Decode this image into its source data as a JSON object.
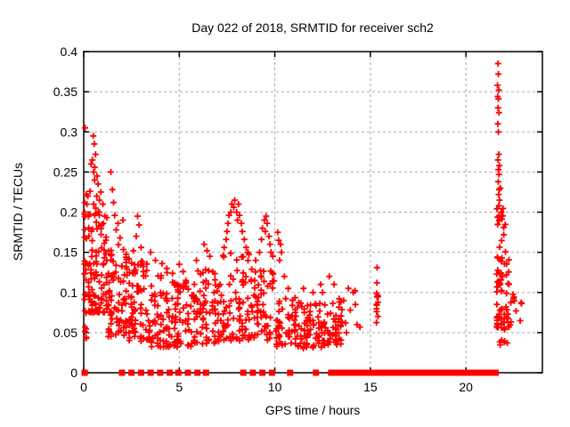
{
  "page": {
    "background": "#ffffff"
  },
  "chart_data": {
    "type": "scatter",
    "title": "Day 022 of 2018, SRMTID for receiver sch2",
    "xlabel": "GPS time / hours",
    "ylabel": "SRMTID / TECUs",
    "xlim": [
      0,
      24
    ],
    "ylim": [
      0,
      0.4
    ],
    "xticks": {
      "values": [
        0,
        5,
        10,
        15,
        20
      ],
      "labels": [
        "0",
        "5",
        "10",
        "15",
        "20"
      ]
    },
    "yticks": {
      "values": [
        0,
        0.05,
        0.1,
        0.15,
        0.2,
        0.25,
        0.3,
        0.35,
        0.4
      ],
      "labels": [
        "0",
        "0.05",
        "0.1",
        "0.15",
        "0.2",
        "0.25",
        "0.3",
        "0.35",
        "0.4"
      ]
    },
    "grid": {
      "on": true,
      "style": "dashed",
      "color": "#a8a8a8"
    },
    "legend": "none",
    "series": {
      "name": "SRMTID",
      "marker": "plus",
      "color": "#ff0000",
      "marker_size": 7
    },
    "border_color": "#000000",
    "zero_markers": {
      "shape": "square",
      "size": 7,
      "singles": [
        0.05,
        2.0,
        2.5,
        3.0,
        3.5,
        4.0,
        4.5,
        4.95,
        5.45,
        5.95,
        6.4,
        8.35,
        8.85,
        9.35,
        9.85,
        10.8,
        12.15,
        12.95
      ],
      "segments": [
        [
          13.2,
          14.3
        ],
        [
          14.5,
          21.55
        ]
      ]
    },
    "feature_points": [
      [
        0.07,
        0.305
      ],
      [
        0.5,
        0.295
      ],
      [
        0.55,
        0.285
      ],
      [
        0.62,
        0.272
      ],
      [
        0.45,
        0.265
      ],
      [
        0.38,
        0.26
      ],
      [
        0.58,
        0.256
      ],
      [
        0.52,
        0.25
      ],
      [
        0.7,
        0.245
      ],
      [
        0.57,
        0.24
      ],
      [
        0.75,
        0.235
      ],
      [
        0.33,
        0.226
      ],
      [
        0.22,
        0.22
      ],
      [
        0.68,
        0.22
      ],
      [
        0.82,
        0.215
      ],
      [
        0.17,
        0.21
      ],
      [
        0.52,
        0.21
      ],
      [
        0.63,
        0.205
      ],
      [
        0.77,
        0.2
      ],
      [
        0.9,
        0.225
      ],
      [
        1.0,
        0.21
      ],
      [
        1.1,
        0.195
      ],
      [
        1.42,
        0.25
      ],
      [
        1.5,
        0.228
      ],
      [
        1.56,
        0.212
      ],
      [
        1.62,
        0.196
      ],
      [
        1.7,
        0.178
      ],
      [
        1.8,
        0.186
      ],
      [
        1.9,
        0.168
      ],
      [
        2.05,
        0.19
      ],
      [
        2.6,
        0.152
      ],
      [
        2.75,
        0.17
      ],
      [
        2.82,
        0.195
      ],
      [
        2.9,
        0.184
      ],
      [
        3.0,
        0.156
      ],
      [
        3.5,
        0.15
      ],
      [
        3.75,
        0.14
      ],
      [
        4.1,
        0.136
      ],
      [
        4.35,
        0.13
      ],
      [
        5.0,
        0.135
      ],
      [
        5.2,
        0.126
      ],
      [
        5.9,
        0.14
      ],
      [
        6.3,
        0.16
      ],
      [
        6.45,
        0.152
      ],
      [
        6.6,
        0.145
      ],
      [
        7.3,
        0.146
      ],
      [
        7.35,
        0.156
      ],
      [
        7.45,
        0.166
      ],
      [
        7.5,
        0.176
      ],
      [
        7.55,
        0.186
      ],
      [
        7.6,
        0.196
      ],
      [
        7.7,
        0.2
      ],
      [
        7.75,
        0.21
      ],
      [
        7.85,
        0.206
      ],
      [
        7.9,
        0.215
      ],
      [
        8.0,
        0.2
      ],
      [
        8.05,
        0.19
      ],
      [
        8.1,
        0.21
      ],
      [
        8.15,
        0.196
      ],
      [
        8.25,
        0.186
      ],
      [
        8.3,
        0.176
      ],
      [
        8.4,
        0.166
      ],
      [
        8.5,
        0.156
      ],
      [
        8.6,
        0.15
      ],
      [
        9.0,
        0.14
      ],
      [
        9.2,
        0.15
      ],
      [
        9.3,
        0.166
      ],
      [
        9.35,
        0.18
      ],
      [
        9.45,
        0.19
      ],
      [
        9.5,
        0.176
      ],
      [
        9.55,
        0.195
      ],
      [
        9.6,
        0.186
      ],
      [
        9.7,
        0.17
      ],
      [
        9.75,
        0.16
      ],
      [
        9.8,
        0.15
      ],
      [
        9.9,
        0.145
      ],
      [
        10.15,
        0.175
      ],
      [
        10.2,
        0.165
      ],
      [
        10.3,
        0.16
      ],
      [
        10.35,
        0.15
      ],
      [
        10.25,
        0.14
      ],
      [
        10.5,
        0.12
      ],
      [
        10.7,
        0.105
      ],
      [
        11.5,
        0.105
      ],
      [
        12.0,
        0.1
      ],
      [
        12.4,
        0.11
      ],
      [
        12.5,
        0.1
      ],
      [
        12.85,
        0.12
      ],
      [
        13.1,
        0.11
      ],
      [
        13.6,
        0.09
      ],
      [
        13.7,
        0.062
      ],
      [
        13.75,
        0.05
      ],
      [
        13.85,
        0.105
      ],
      [
        13.95,
        0.078
      ],
      [
        14.1,
        0.1
      ],
      [
        14.2,
        0.102
      ],
      [
        14.22,
        0.085
      ],
      [
        14.3,
        0.06
      ],
      [
        14.45,
        0.057
      ],
      [
        15.35,
        0.131
      ],
      [
        15.34,
        0.112
      ],
      [
        21.68,
        0.385
      ],
      [
        21.7,
        0.372
      ],
      [
        21.65,
        0.358
      ],
      [
        21.72,
        0.352
      ],
      [
        21.66,
        0.344
      ],
      [
        21.7,
        0.341
      ],
      [
        21.68,
        0.33
      ],
      [
        21.73,
        0.324
      ],
      [
        21.67,
        0.31
      ],
      [
        21.7,
        0.3
      ],
      [
        21.72,
        0.272
      ],
      [
        21.68,
        0.265
      ],
      [
        21.75,
        0.258
      ],
      [
        21.7,
        0.253
      ],
      [
        21.73,
        0.247
      ],
      [
        21.69,
        0.238
      ],
      [
        21.74,
        0.228
      ],
      [
        21.71,
        0.222
      ],
      [
        21.76,
        0.215
      ],
      [
        21.72,
        0.208
      ],
      [
        21.8,
        0.23
      ],
      [
        21.85,
        0.2
      ],
      [
        0.05,
        0.0
      ]
    ],
    "clusters": [
      {
        "x": [
          0.02,
          0.16
        ],
        "y": [
          0.04,
          0.23
        ],
        "n": 25,
        "skew": 1.25,
        "cols": 2,
        "seed": 11
      },
      {
        "x": [
          0.22,
          1.25
        ],
        "y": [
          0.075,
          0.2
        ],
        "n": 100,
        "skew": 1.7,
        "cols": 8,
        "seed": 22
      },
      {
        "x": [
          1.25,
          2.3
        ],
        "y": [
          0.045,
          0.16
        ],
        "n": 80,
        "skew": 1.5,
        "cols": 8,
        "seed": 33
      },
      {
        "x": [
          2.3,
          3.35
        ],
        "y": [
          0.038,
          0.145
        ],
        "n": 70,
        "skew": 1.5,
        "cols": 7,
        "seed": 44
      },
      {
        "x": [
          3.35,
          4.7
        ],
        "y": [
          0.032,
          0.125
        ],
        "n": 72,
        "skew": 1.45,
        "cols": 9,
        "seed": 55
      },
      {
        "x": [
          4.7,
          5.7
        ],
        "y": [
          0.032,
          0.115
        ],
        "n": 58,
        "skew": 1.4,
        "cols": 7,
        "seed": 66
      },
      {
        "x": [
          5.7,
          7.1
        ],
        "y": [
          0.035,
          0.13
        ],
        "n": 78,
        "skew": 1.45,
        "cols": 9,
        "seed": 77
      },
      {
        "x": [
          7.1,
          8.7
        ],
        "y": [
          0.04,
          0.15
        ],
        "n": 78,
        "skew": 1.4,
        "cols": 10,
        "seed": 88
      },
      {
        "x": [
          8.7,
          10.0
        ],
        "y": [
          0.04,
          0.13
        ],
        "n": 62,
        "skew": 1.4,
        "cols": 8,
        "seed": 99
      },
      {
        "x": [
          10.0,
          11.3
        ],
        "y": [
          0.032,
          0.095
        ],
        "n": 58,
        "skew": 1.4,
        "cols": 8,
        "seed": 110
      },
      {
        "x": [
          11.3,
          12.7
        ],
        "y": [
          0.03,
          0.09
        ],
        "n": 70,
        "skew": 1.4,
        "cols": 9,
        "seed": 121
      },
      {
        "x": [
          12.7,
          13.55
        ],
        "y": [
          0.035,
          0.105
        ],
        "n": 42,
        "skew": 1.4,
        "cols": 6,
        "seed": 132
      },
      {
        "x": [
          15.3,
          15.42
        ],
        "y": [
          0.055,
          0.115
        ],
        "n": 11,
        "skew": 1.0,
        "cols": 2,
        "seed": 143
      },
      {
        "x": [
          21.58,
          22.4
        ],
        "y": [
          0.055,
          0.145
        ],
        "n": 62,
        "skew": 1.5,
        "cols": 7,
        "seed": 154
      },
      {
        "x": [
          21.6,
          22.1
        ],
        "y": [
          0.14,
          0.205
        ],
        "n": 16,
        "skew": 1.2,
        "cols": 5,
        "seed": 165
      },
      {
        "x": [
          21.7,
          22.2
        ],
        "y": [
          0.034,
          0.054
        ],
        "n": 7,
        "skew": 1.0,
        "cols": 4,
        "seed": 176
      },
      {
        "x": [
          22.4,
          22.95
        ],
        "y": [
          0.06,
          0.105
        ],
        "n": 8,
        "skew": 1.2,
        "cols": 3,
        "seed": 187
      }
    ]
  }
}
